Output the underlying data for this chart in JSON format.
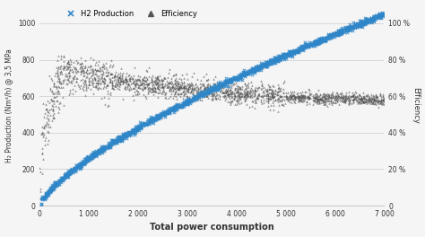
{
  "title": "",
  "xlabel": "Total power consumption",
  "ylabel_left": "H₂ Production (Nm³/h) @ 3,5 MPa",
  "ylabel_right": "Efficiency",
  "xlim": [
    0,
    7000
  ],
  "ylim_left": [
    0,
    1100
  ],
  "ylim_right": [
    0,
    110
  ],
  "xticks": [
    0,
    1000,
    2000,
    3000,
    4000,
    5000,
    6000,
    7000
  ],
  "xtick_labels": [
    "0",
    "1 000",
    "2 000",
    "3 000",
    "4 000",
    "5 000",
    "6 000",
    "7 000"
  ],
  "yticks_left": [
    0,
    200,
    400,
    600,
    800,
    1000
  ],
  "yticks_right": [
    0,
    20,
    40,
    60,
    80,
    100
  ],
  "ytick_labels_right": [
    "0",
    "20 %",
    "40 %",
    "60 %",
    "80 %",
    "100 %"
  ],
  "h2_color": "#2e86c8",
  "eff_color": "#555555",
  "bg_color": "#f5f5f5",
  "grid_color": "#cccccc",
  "legend_h2": "H2 Production",
  "legend_eff": "Efficiency",
  "font_color": "#333333"
}
